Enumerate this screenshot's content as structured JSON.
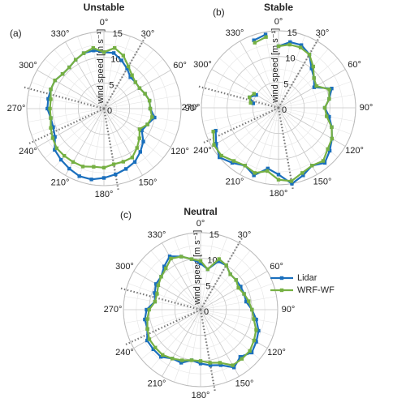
{
  "chart_data": [
    {
      "type": "polar",
      "title": "Unstable",
      "panel": "(a)",
      "r_label": "wind speed [m s⁻¹]",
      "theta": [
        0,
        10,
        20,
        30,
        40,
        50,
        60,
        70,
        80,
        90,
        100,
        110,
        120,
        130,
        140,
        150,
        160,
        170,
        180,
        190,
        200,
        210,
        220,
        230,
        240,
        250,
        260,
        270,
        280,
        290,
        300,
        310,
        320,
        330,
        340,
        350
      ],
      "rlim": [
        0,
        15
      ],
      "rticks": [
        0,
        5,
        10,
        15
      ],
      "thetaticks": [
        {
          "value": 0,
          "label": "0°"
        },
        {
          "value": 30,
          "label": "30°"
        },
        {
          "value": 60,
          "label": "60°"
        },
        {
          "value": 90,
          "label": "90°"
        },
        {
          "value": 120,
          "label": "120°"
        },
        {
          "value": 150,
          "label": "150°"
        },
        {
          "value": 180,
          "label": "180°"
        },
        {
          "value": 210,
          "label": "210°"
        },
        {
          "value": 240,
          "label": "240°"
        },
        {
          "value": 270,
          "label": "270°"
        },
        {
          "value": 300,
          "label": "300°"
        },
        {
          "value": 330,
          "label": "330°"
        }
      ],
      "series": [
        {
          "name": "Lidar",
          "color": "#1a6fbd",
          "values": [
            11,
            11,
            10,
            9,
            8,
            8,
            8,
            8.5,
            9,
            9,
            10,
            9,
            8.5,
            10,
            11,
            12,
            12.5,
            13,
            13.5,
            14,
            14,
            13.5,
            13,
            12.5,
            11,
            10.5,
            10.5,
            11,
            11,
            11,
            11,
            10.5,
            10.5,
            11,
            11.5,
            11.5
          ]
        },
        {
          "name": "WRF-WF",
          "color": "#76b043",
          "values": [
            11,
            12,
            11,
            9.5,
            8.5,
            8,
            8,
            8.5,
            9,
            9,
            9.5,
            9,
            8,
            9,
            10,
            11,
            11,
            11,
            11.5,
            11.5,
            12,
            12,
            12,
            12,
            11.5,
            11,
            10.5,
            10.5,
            10.5,
            11,
            11,
            10.5,
            10.5,
            11,
            11.5,
            12
          ]
        }
      ]
    },
    {
      "type": "polar",
      "title": "Stable",
      "panel": "(b)",
      "r_label": "wind speed [m s⁻¹]",
      "theta": [
        0,
        10,
        20,
        30,
        40,
        50,
        60,
        70,
        80,
        90,
        100,
        110,
        120,
        130,
        140,
        150,
        160,
        170,
        180,
        190,
        200,
        210,
        220,
        230,
        240,
        250,
        260,
        270,
        280,
        290,
        300,
        310,
        320,
        330,
        340,
        350
      ],
      "rlim": [
        0,
        15
      ],
      "rticks": [
        0,
        5,
        10,
        15
      ],
      "thetaticks": [
        {
          "value": 0,
          "label": "0°"
        },
        {
          "value": 30,
          "label": "30°"
        },
        {
          "value": 60,
          "label": "60°"
        },
        {
          "value": 90,
          "label": "90°"
        },
        {
          "value": 120,
          "label": "120°"
        },
        {
          "value": 150,
          "label": "150°"
        },
        {
          "value": 180,
          "label": "180°"
        },
        {
          "value": 210,
          "label": "210°"
        },
        {
          "value": 240,
          "label": "240°"
        },
        {
          "value": 270,
          "label": "270°"
        },
        {
          "value": 300,
          "label": "300°"
        },
        {
          "value": 330,
          "label": "330°"
        }
      ],
      "series": [
        {
          "name": "Lidar",
          "color": "#1a6fbd",
          "values": [
            12,
            13,
            13,
            12,
            10,
            9,
            8,
            11,
            10,
            9,
            10,
            11,
            12,
            13,
            14,
            13,
            14,
            15,
            13,
            12,
            14,
            13,
            14,
            15,
            14,
            13,
            null,
            null,
            5,
            6,
            5,
            null,
            null,
            null,
            14,
            14.5
          ]
        },
        {
          "name": "WRF-WF",
          "color": "#76b043",
          "values": [
            12,
            12.5,
            12.5,
            12,
            10.5,
            9,
            8.5,
            10.5,
            10,
            9,
            9.5,
            11,
            12,
            12.5,
            13.5,
            13,
            13.5,
            14.5,
            14,
            12.5,
            13.5,
            13,
            13.5,
            14.5,
            14.5,
            13.5,
            null,
            null,
            5.5,
            6,
            5.5,
            null,
            null,
            null,
            13.5,
            14
          ]
        }
      ]
    },
    {
      "type": "polar",
      "title": "Neutral",
      "panel": "(c)",
      "r_label": "wind speed [m s⁻¹]",
      "theta": [
        0,
        10,
        20,
        30,
        40,
        50,
        60,
        70,
        80,
        90,
        100,
        110,
        120,
        130,
        140,
        150,
        160,
        170,
        180,
        190,
        200,
        210,
        220,
        230,
        240,
        250,
        260,
        270,
        280,
        290,
        300,
        310,
        320,
        330,
        340,
        350
      ],
      "rlim": [
        0,
        15
      ],
      "rticks": [
        0,
        5,
        10,
        15
      ],
      "thetaticks": [
        {
          "value": 0,
          "label": "0°"
        },
        {
          "value": 30,
          "label": "30°"
        },
        {
          "value": 60,
          "label": "60°"
        },
        {
          "value": 90,
          "label": "90°"
        },
        {
          "value": 120,
          "label": "120°"
        },
        {
          "value": 150,
          "label": "150°"
        },
        {
          "value": 180,
          "label": "180°"
        },
        {
          "value": 210,
          "label": "210°"
        },
        {
          "value": 240,
          "label": "240°"
        },
        {
          "value": 270,
          "label": "270°"
        },
        {
          "value": 300,
          "label": "300°"
        },
        {
          "value": 330,
          "label": "330°"
        }
      ],
      "series": [
        {
          "name": "Lidar",
          "color": "#1a6fbd",
          "values": [
            9,
            8,
            10,
            10,
            9,
            9,
            9,
            9,
            9,
            10,
            11,
            12,
            12.5,
            13,
            12,
            13,
            11.5,
            11,
            10.5,
            10,
            11,
            11,
            12,
            12,
            12,
            11,
            11,
            10.5,
            9,
            9.5,
            10,
            10,
            11,
            12,
            11,
            10
          ]
        },
        {
          "name": "WRF-WF",
          "color": "#76b043",
          "values": [
            9.5,
            8,
            10.5,
            10,
            9,
            9,
            8.5,
            9,
            9.5,
            10,
            10.5,
            11.5,
            12,
            12.5,
            12.5,
            12.5,
            11,
            10.5,
            10,
            10,
            10.5,
            11,
            11.5,
            11.5,
            11.5,
            11,
            10.5,
            10,
            9,
            9,
            9.5,
            10,
            10.5,
            11.5,
            11,
            10
          ]
        }
      ]
    }
  ]
}
